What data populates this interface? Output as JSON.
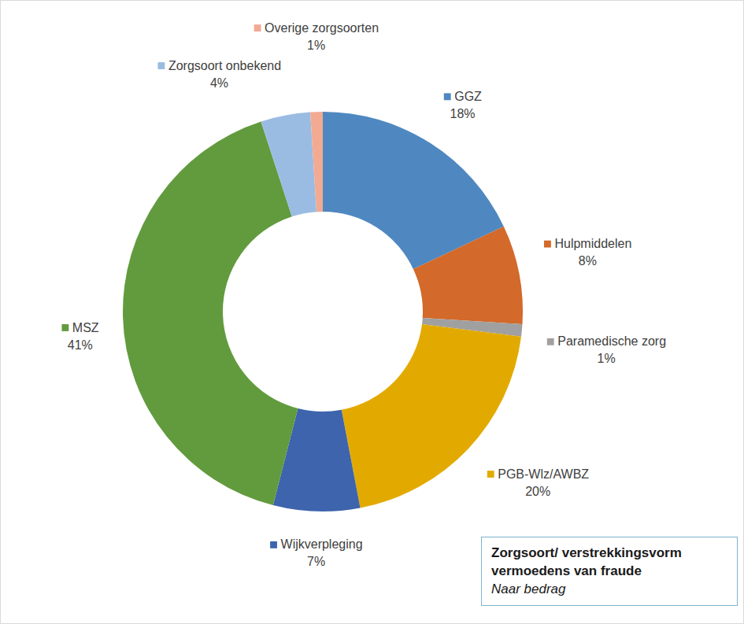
{
  "chart_data": {
    "type": "donut",
    "title": "Zorgsoort/ verstrekkingsvorm vermoedens van fraude",
    "subtitle": "Naar bedrag",
    "categories": [
      "GGZ",
      "Hulpmiddelen",
      "Paramedische zorg",
      "PGB-Wlz/AWBZ",
      "Wijkverpleging",
      "MSZ",
      "Zorgsoort onbekend",
      "Overige zorgsoorten"
    ],
    "values": [
      18,
      8,
      1,
      20,
      7,
      41,
      4,
      1
    ],
    "value_labels": [
      "18%",
      "8%",
      "1%",
      "20%",
      "7%",
      "41%",
      "4%",
      "1%"
    ],
    "colors": [
      "#4f88c0",
      "#d3692a",
      "#a0a0a0",
      "#e2aa00",
      "#3d64ad",
      "#629b3e",
      "#9bbce2",
      "#f2aa93"
    ],
    "data_labels": true
  }
}
